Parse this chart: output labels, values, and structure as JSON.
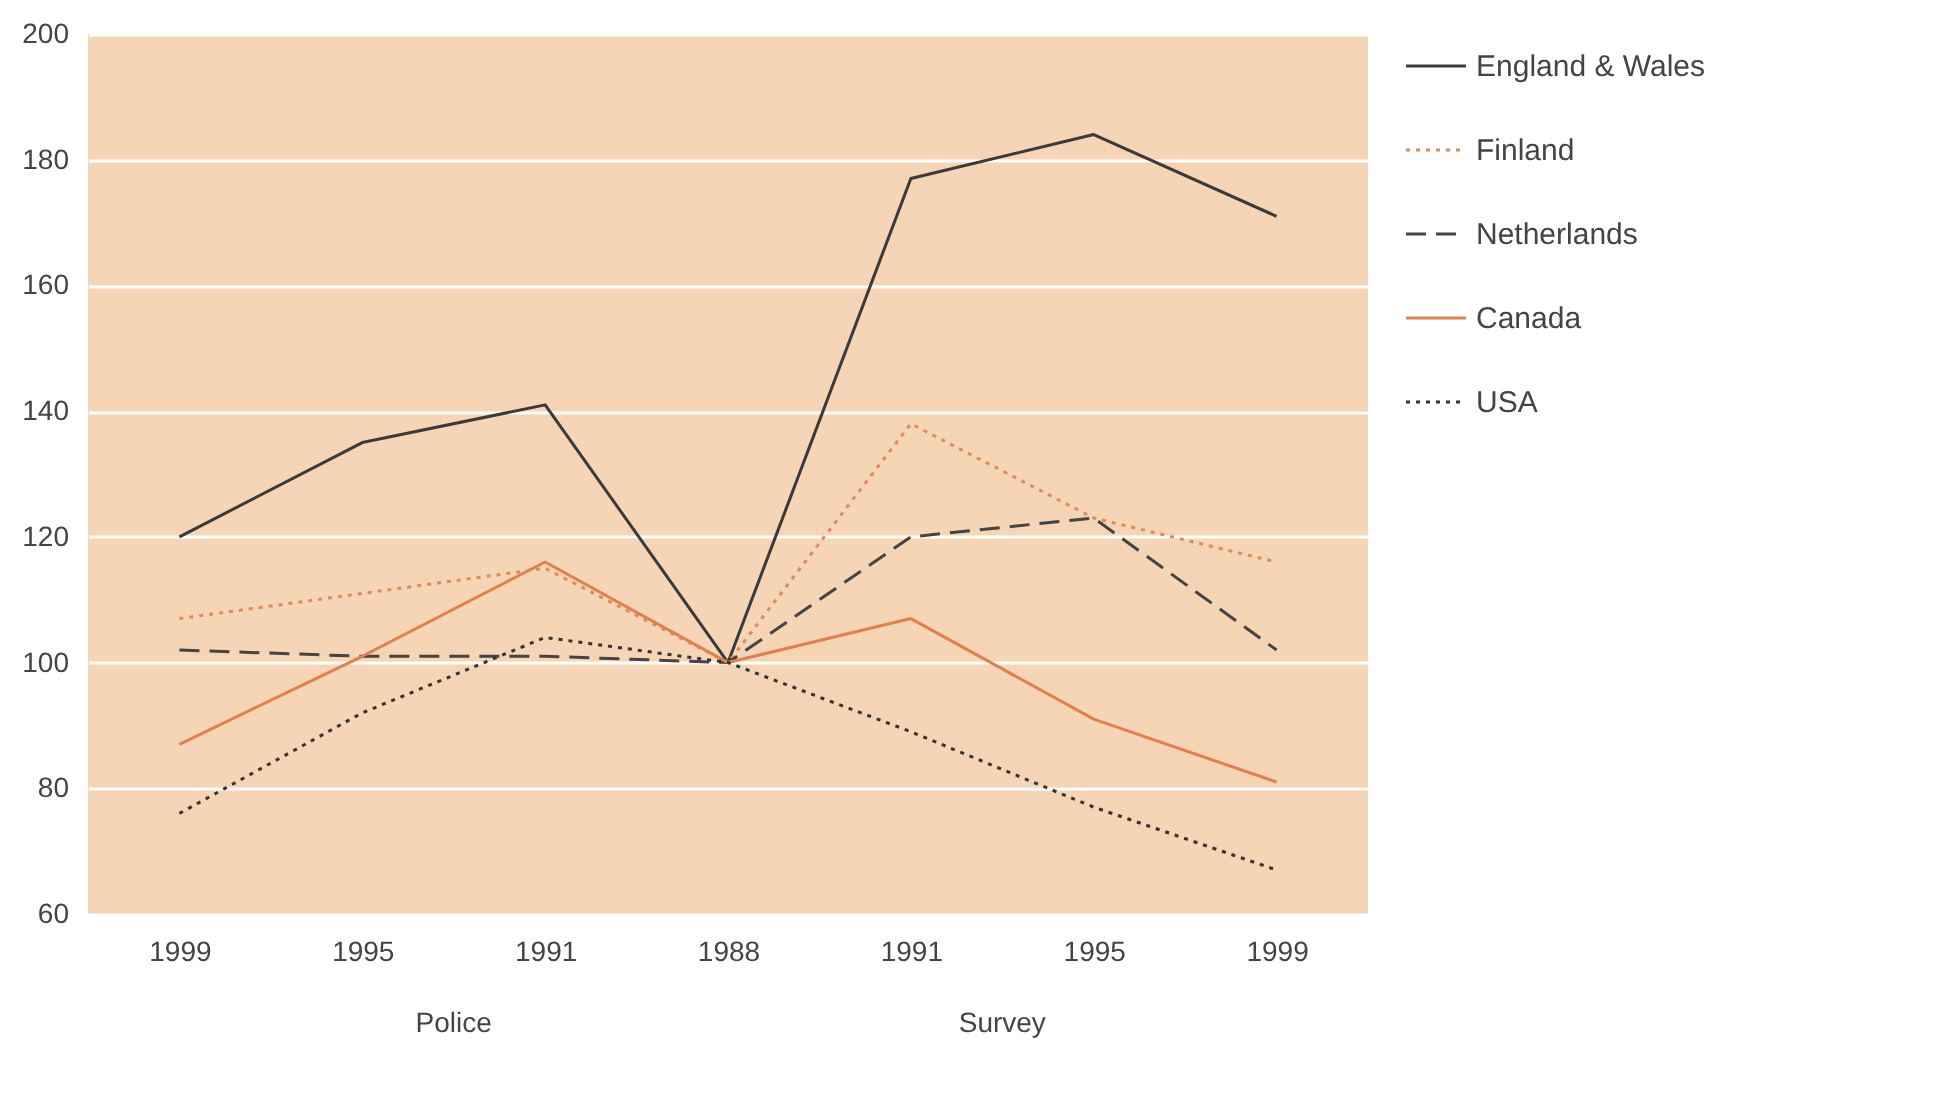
{
  "chart_data": {
    "type": "line",
    "categories": [
      "1999",
      "1995",
      "1991",
      "1988",
      "1991",
      "1995",
      "1999"
    ],
    "series": [
      {
        "name": "England & Wales",
        "color": "#3a3a3a",
        "line_style": "solid",
        "values": [
          120,
          135,
          141,
          100,
          177,
          184,
          171
        ]
      },
      {
        "name": "Finland",
        "color": "#e08a5a",
        "line_style": "dotted",
        "values": [
          107,
          111,
          115,
          100,
          138,
          123,
          116
        ]
      },
      {
        "name": "Netherlands",
        "color": "#444444",
        "line_style": "dashed",
        "values": [
          102,
          101,
          101,
          100,
          120,
          123,
          102
        ]
      },
      {
        "name": "Canada",
        "color": "#e0804f",
        "line_style": "solid",
        "values": [
          87,
          101,
          116,
          100,
          107,
          91,
          81
        ]
      },
      {
        "name": "USA",
        "color": "#333333",
        "line_style": "dotted",
        "values": [
          76,
          92,
          104,
          100,
          89,
          77,
          67
        ]
      }
    ],
    "ylim": [
      60,
      200
    ],
    "yticks": [
      60,
      80,
      100,
      120,
      140,
      160,
      180,
      200
    ],
    "grid": "y",
    "legend": "right",
    "marker": "none",
    "annotations": [
      "Police",
      "Survey"
    ]
  }
}
